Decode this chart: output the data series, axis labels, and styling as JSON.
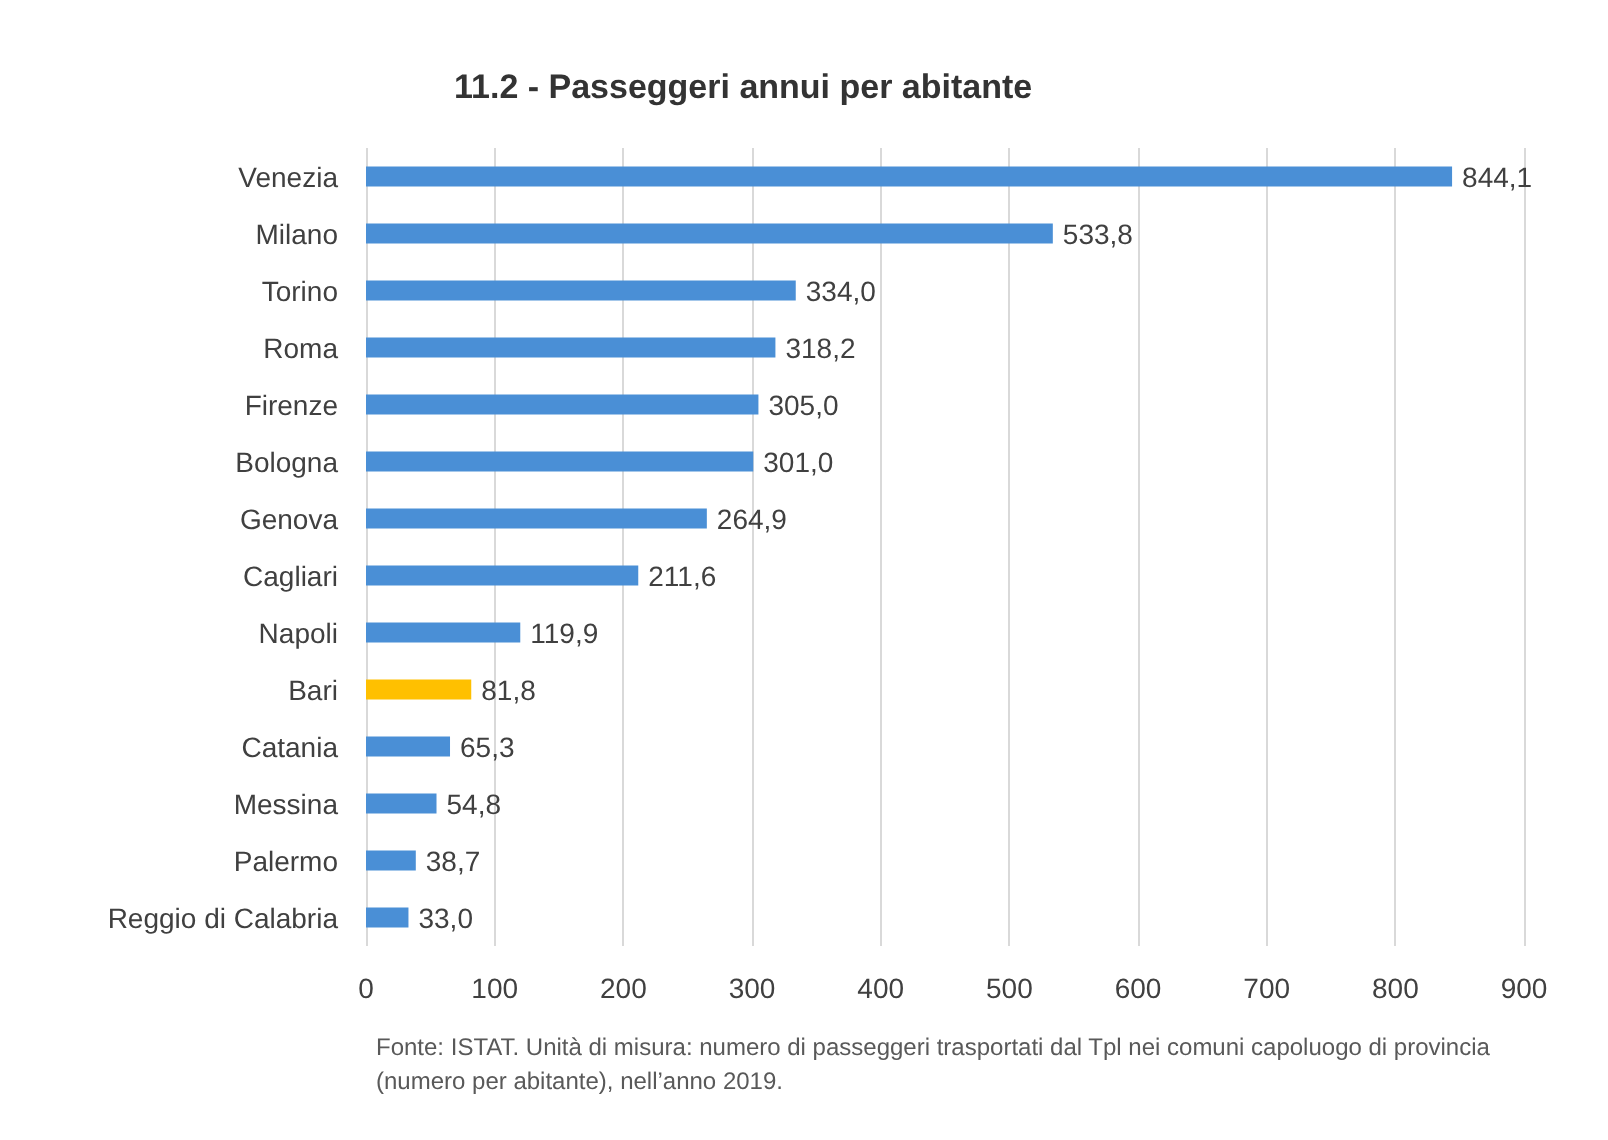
{
  "chart_data": {
    "type": "bar",
    "orientation": "horizontal",
    "title": "11.2 - Passeggeri annui per abitante",
    "categories": [
      "Venezia",
      "Milano",
      "Torino",
      "Roma",
      "Firenze",
      "Bologna",
      "Genova",
      "Cagliari",
      "Napoli",
      "Bari",
      "Catania",
      "Messina",
      "Palermo",
      "Reggio di Calabria"
    ],
    "values": [
      844.1,
      533.8,
      334.0,
      318.2,
      305.0,
      301.0,
      264.9,
      211.6,
      119.9,
      81.8,
      65.3,
      54.8,
      38.7,
      33.0
    ],
    "value_labels": [
      "844,1",
      "533,8",
      "334,0",
      "318,2",
      "305,0",
      "301,0",
      "264,9",
      "211,6",
      "119,9",
      "81,8",
      "65,3",
      "54,8",
      "38,7",
      "33,0"
    ],
    "colors": [
      "#4a8fd6",
      "#4a8fd6",
      "#4a8fd6",
      "#4a8fd6",
      "#4a8fd6",
      "#4a8fd6",
      "#4a8fd6",
      "#4a8fd6",
      "#4a8fd6",
      "#ffc000",
      "#4a8fd6",
      "#4a8fd6",
      "#4a8fd6",
      "#4a8fd6"
    ],
    "xlim": [
      0,
      900
    ],
    "xticks": [
      0,
      100,
      200,
      300,
      400,
      500,
      600,
      700,
      800,
      900
    ],
    "grid": "x",
    "annotations": [
      "Fonte: ISTAT. Unità di misura: numero di passeggeri trasportati dal Tpl nei comuni capoluogo di provincia (numero per abitante), nell’anno 2019."
    ]
  }
}
